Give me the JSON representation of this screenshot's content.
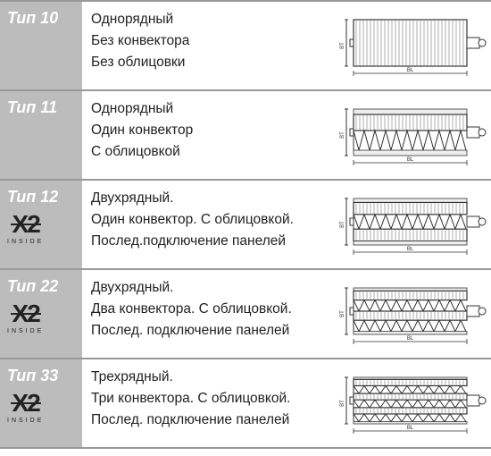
{
  "rows": [
    {
      "type_label": "Тип 10",
      "has_x2": false,
      "desc_lines": [
        "Однорядный",
        "Без конвектора",
        "Без облицовки"
      ],
      "diagram": {
        "panels": 1,
        "convectors": 0,
        "cladding": false
      }
    },
    {
      "type_label": "Тип 11",
      "has_x2": false,
      "desc_lines": [
        "Однорядный",
        "Один конвектор",
        "С облицовкой"
      ],
      "diagram": {
        "panels": 1,
        "convectors": 1,
        "cladding": true
      }
    },
    {
      "type_label": "Тип 12",
      "has_x2": true,
      "desc_lines": [
        "Двухрядный.",
        "Один конвектор. С облицовкой.",
        "Послед.подключение панелей"
      ],
      "diagram": {
        "panels": 2,
        "convectors": 1,
        "cladding": true
      }
    },
    {
      "type_label": "Тип 22",
      "has_x2": true,
      "desc_lines": [
        "Двухрядный.",
        "Два конвектора. С облицовкой.",
        "Послед. подключение панелей"
      ],
      "diagram": {
        "panels": 2,
        "convectors": 2,
        "cladding": true
      }
    },
    {
      "type_label": "Тип 33",
      "has_x2": true,
      "desc_lines": [
        "Трехрядный.",
        "Три конвектора. С облицовкой.",
        "Послед. подключение панелей"
      ],
      "diagram": {
        "panels": 3,
        "convectors": 3,
        "cladding": true
      }
    }
  ],
  "x2_logo": {
    "text": "X2",
    "sub": "INSIDE"
  },
  "colors": {
    "type_bg": "#bcbcbc",
    "type_text": "#ffffff",
    "border": "#999999",
    "desc_text": "#222222",
    "diagram_stroke": "#333333",
    "diagram_hatch": "#666666"
  },
  "diagram_labels": {
    "width": "BL",
    "depth": "BT"
  }
}
